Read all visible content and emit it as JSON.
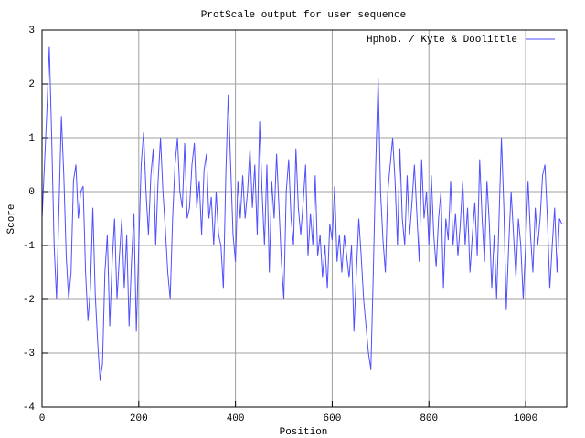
{
  "chart_data": {
    "type": "line",
    "title": "ProtScale output for user sequence",
    "xlabel": "Position",
    "ylabel": "Score",
    "xlim": [
      0,
      1085
    ],
    "ylim": [
      -4,
      3
    ],
    "xticks": [
      0,
      200,
      400,
      600,
      800,
      1000
    ],
    "yticks": [
      -4,
      -3,
      -2,
      -1,
      0,
      1,
      2,
      3
    ],
    "grid": true,
    "legend": "top-right",
    "x": [
      0,
      5,
      10,
      15,
      20,
      25,
      30,
      35,
      40,
      45,
      50,
      55,
      60,
      65,
      70,
      75,
      80,
      85,
      90,
      95,
      100,
      105,
      110,
      115,
      120,
      125,
      130,
      135,
      140,
      145,
      150,
      155,
      160,
      165,
      170,
      175,
      180,
      185,
      190,
      195,
      200,
      205,
      210,
      215,
      220,
      225,
      230,
      235,
      240,
      245,
      250,
      255,
      260,
      265,
      270,
      275,
      280,
      285,
      290,
      295,
      300,
      305,
      310,
      315,
      320,
      325,
      330,
      335,
      340,
      345,
      350,
      355,
      360,
      365,
      370,
      375,
      380,
      385,
      390,
      395,
      400,
      405,
      410,
      415,
      420,
      425,
      430,
      435,
      440,
      445,
      450,
      455,
      460,
      465,
      470,
      475,
      480,
      485,
      490,
      495,
      500,
      505,
      510,
      515,
      520,
      525,
      530,
      535,
      540,
      545,
      550,
      555,
      560,
      565,
      570,
      575,
      580,
      585,
      590,
      595,
      600,
      605,
      610,
      615,
      620,
      625,
      630,
      635,
      640,
      645,
      650,
      655,
      660,
      665,
      670,
      675,
      680,
      685,
      690,
      695,
      700,
      705,
      710,
      715,
      720,
      725,
      730,
      735,
      740,
      745,
      750,
      755,
      760,
      765,
      770,
      775,
      780,
      785,
      790,
      795,
      800,
      805,
      810,
      815,
      820,
      825,
      830,
      835,
      840,
      845,
      850,
      855,
      860,
      865,
      870,
      875,
      880,
      885,
      890,
      895,
      900,
      905,
      910,
      915,
      920,
      925,
      930,
      935,
      940,
      945,
      950,
      955,
      960,
      965,
      970,
      975,
      980,
      985,
      990,
      995,
      1000,
      1005,
      1010,
      1015,
      1020,
      1025,
      1030,
      1035,
      1040,
      1045,
      1050,
      1055,
      1060,
      1065,
      1070,
      1075,
      1080
    ],
    "series": [
      {
        "name": "Hphob. / Kyte & Doolittle",
        "color": "#4f4fff",
        "values": [
          -0.5,
          0.5,
          1.5,
          2.7,
          1.0,
          -1.0,
          -2.0,
          -0.3,
          1.4,
          0.3,
          -1.2,
          -2.0,
          -1.5,
          0.2,
          0.5,
          -0.5,
          0.0,
          0.1,
          -1.5,
          -2.4,
          -1.8,
          -0.3,
          -1.9,
          -2.8,
          -3.5,
          -3.2,
          -1.5,
          -0.8,
          -2.5,
          -1.3,
          -0.5,
          -2.0,
          -1.2,
          -0.5,
          -1.8,
          -0.8,
          -2.5,
          -1.3,
          -0.4,
          -2.6,
          -1.0,
          0.5,
          1.1,
          0.0,
          -0.8,
          0.3,
          0.8,
          -1.0,
          0.2,
          1.0,
          0.0,
          -0.7,
          -1.5,
          -2.0,
          -0.5,
          0.5,
          1.0,
          0.0,
          -0.3,
          0.9,
          -0.5,
          -0.3,
          0.5,
          0.9,
          -0.3,
          0.2,
          -0.8,
          0.4,
          0.7,
          -0.5,
          -0.1,
          -1.0,
          0.0,
          -0.8,
          -1.0,
          -1.8,
          0.3,
          1.8,
          0.5,
          -0.8,
          -1.3,
          0.2,
          -0.5,
          0.3,
          -0.5,
          0.0,
          0.8,
          -0.3,
          0.5,
          -0.8,
          1.3,
          0.0,
          -1.0,
          0.5,
          -1.5,
          0.2,
          -0.5,
          0.7,
          -0.3,
          -1.3,
          -2.0,
          0.0,
          0.6,
          -0.5,
          -1.0,
          0.8,
          -0.3,
          -0.8,
          -0.2,
          0.5,
          -1.2,
          -0.4,
          -1.0,
          0.3,
          -1.2,
          -0.8,
          -1.6,
          -1.0,
          -1.8,
          -0.6,
          -0.9,
          0.1,
          -1.3,
          -0.8,
          -1.5,
          -0.8,
          -1.2,
          -1.6,
          -1.0,
          -2.6,
          -1.5,
          -0.5,
          -1.2,
          -2.0,
          -2.5,
          -3.0,
          -3.3,
          -1.5,
          0.5,
          2.1,
          0.0,
          -0.9,
          -1.5,
          0.0,
          0.5,
          1.0,
          0.2,
          -1.0,
          0.8,
          -0.5,
          -1.0,
          0.3,
          -0.8,
          -0.2,
          0.5,
          -0.4,
          -1.3,
          0.6,
          -0.5,
          0.0,
          -1.0,
          0.3,
          -0.8,
          -1.4,
          -0.5,
          0.0,
          -1.8,
          -0.5,
          -0.9,
          0.2,
          -1.0,
          -0.4,
          -1.2,
          -0.6,
          0.2,
          -1.0,
          -0.3,
          -1.5,
          -0.8,
          -0.2,
          -1.2,
          0.6,
          -0.5,
          -1.3,
          0.2,
          -0.6,
          -1.8,
          -0.8,
          -2.0,
          -0.5,
          1.0,
          -0.3,
          -2.2,
          -1.0,
          0.0,
          -0.8,
          -1.6,
          -0.5,
          -1.0,
          -2.0,
          -1.0,
          0.2,
          -0.8,
          -1.5,
          -0.3,
          -1.0,
          -0.5,
          0.3,
          0.5,
          -0.5,
          -1.8,
          -1.0,
          -0.3,
          -1.5,
          -0.5,
          -0.6,
          -0.6
        ]
      }
    ]
  }
}
